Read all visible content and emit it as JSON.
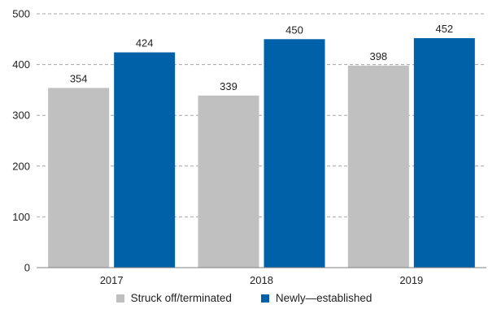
{
  "chart_data": {
    "type": "bar",
    "categories": [
      "2017",
      "2018",
      "2019"
    ],
    "series": [
      {
        "name": "Struck off/terminated",
        "values": [
          354,
          339,
          398
        ],
        "color": "#c0c0c0"
      },
      {
        "name": "Newly—established",
        "values": [
          424,
          450,
          452
        ],
        "color": "#0061a8"
      }
    ],
    "ylim": [
      0,
      500
    ],
    "yticks": [
      0,
      100,
      200,
      300,
      400,
      500
    ],
    "grid": true,
    "legend_position": "bottom"
  }
}
